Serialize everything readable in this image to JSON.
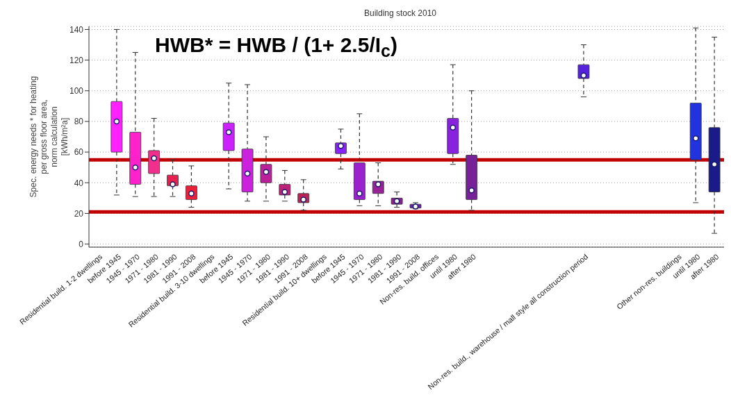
{
  "chart_data": {
    "type": "box",
    "title": "Building stock 2010",
    "ylabel": "Spec. energy needs * for heating\nper gross floor area,\nnorm calculation\n[kWh/m²a]",
    "annotations": [
      "HWB* = HWB / (1+ 2.5/I$_{c}$)"
    ],
    "categories": [
      "Residential build. 1-2 dwellings",
      "before 1945",
      "1945 - 1970",
      "1971 - 1980",
      "1981 - 1990",
      "1991 - 2008",
      "Residential build. 3-10 dwellings",
      "before 1945",
      "1945 - 1970",
      "1971 - 1980",
      "1981 - 1990",
      "1991 - 2008",
      "Residential build. 10+ dwellings",
      "before 1945",
      "1945 - 1970",
      "1971 - 1980",
      "1981 - 1990",
      "1991 - 2008",
      "Non-res. build. offices",
      "until 1980",
      "after 1980",
      null,
      null,
      null,
      null,
      null,
      "Non-res. build., warehouse / mall style all construction period",
      null,
      null,
      null,
      null,
      "Other non-res. buildings",
      "until 1980",
      "after 1980"
    ],
    "boxes": [
      null,
      {
        "low": 32,
        "q1": 60,
        "median": 80,
        "q3": 93,
        "high": 140
      },
      {
        "low": 31,
        "q1": 39,
        "median": 50,
        "q3": 73,
        "high": 125
      },
      {
        "low": 31,
        "q1": 46,
        "median": 56,
        "q3": 61,
        "high": 82
      },
      {
        "low": 31,
        "q1": 38,
        "median": 39,
        "q3": 45,
        "high": 55
      },
      {
        "low": 24,
        "q1": 29,
        "median": 33,
        "q3": 38,
        "high": 51
      },
      null,
      {
        "low": 36,
        "q1": 61,
        "median": 73,
        "q3": 79,
        "high": 105
      },
      {
        "low": 28,
        "q1": 34,
        "median": 46,
        "q3": 62,
        "high": 104
      },
      {
        "low": 28,
        "q1": 40,
        "median": 47,
        "q3": 52,
        "high": 70
      },
      {
        "low": 28,
        "q1": 32,
        "median": 34,
        "q3": 39,
        "high": 48
      },
      {
        "low": 22,
        "q1": 27,
        "median": 29,
        "q3": 33,
        "high": 42
      },
      null,
      {
        "low": 49,
        "q1": 59,
        "median": 64,
        "q3": 66,
        "high": 75
      },
      {
        "low": 25,
        "q1": 29,
        "median": 33,
        "q3": 53,
        "high": 85
      },
      {
        "low": 25,
        "q1": 33,
        "median": 39,
        "q3": 41,
        "high": 53
      },
      {
        "low": 24,
        "q1": 26,
        "median": 28,
        "q3": 30,
        "high": 34
      },
      {
        "low": 23,
        "q1": 23.5,
        "median": 24.5,
        "q3": 26,
        "high": 27
      },
      null,
      {
        "low": 52,
        "q1": 59,
        "median": 76,
        "q3": 82,
        "high": 117
      },
      {
        "low": 22,
        "q1": 29,
        "median": 35,
        "q3": 58,
        "high": 100
      },
      null,
      null,
      null,
      null,
      null,
      {
        "low": 96,
        "q1": 108,
        "median": 110,
        "q3": 117,
        "high": 130
      },
      null,
      null,
      null,
      null,
      null,
      {
        "low": 27,
        "q1": 55,
        "median": 69,
        "q3": 92,
        "high": 141
      },
      {
        "low": 7,
        "q1": 34,
        "median": 52,
        "q3": 76,
        "high": 135
      }
    ],
    "colors": [
      null,
      "#ff22ff",
      "#ff22cc",
      "#f0308a",
      "#e82050",
      "#e8203a",
      null,
      "#cc22ff",
      "#cc22dd",
      "#bb2299",
      "#bb2277",
      "#bb2255",
      null,
      "#8822ff",
      "#9922cc",
      "#992299",
      "#882288",
      "#6622aa",
      null,
      "#8822dd",
      "#772299",
      null,
      null,
      null,
      null,
      null,
      "#5522dd",
      null,
      null,
      null,
      null,
      null,
      "#2233dd",
      "#1a1a88"
    ],
    "ref_lines": [
      {
        "axis": "y",
        "value": 55,
        "color": "#c00000"
      },
      {
        "axis": "y",
        "value": 21,
        "color": "#c00000"
      }
    ],
    "ylim": [
      -2,
      142
    ],
    "yticks": [
      0,
      20,
      40,
      60,
      80,
      100,
      120,
      140
    ],
    "grid": "y"
  }
}
